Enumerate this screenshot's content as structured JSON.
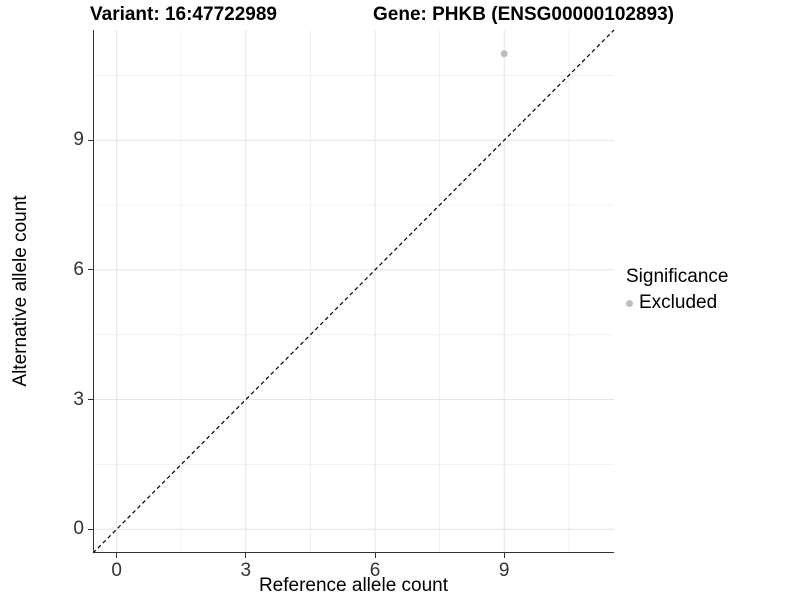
{
  "header": {
    "variant_title": "Variant: 16:47722989",
    "gene_title": "Gene: PHKB (ENSG00000102893)"
  },
  "chart_data": {
    "type": "scatter",
    "xlabel": "Reference allele count",
    "ylabel": "Alternative allele count",
    "x_ticks": [
      0,
      3,
      6,
      9
    ],
    "y_ticks": [
      0,
      3,
      6,
      9
    ],
    "x_minor_ticks": [
      1.5,
      4.5,
      7.5,
      10.5
    ],
    "y_minor_ticks": [
      1.5,
      4.5,
      7.5,
      10.5
    ],
    "xlim": [
      -0.55,
      11.55
    ],
    "ylim": [
      -0.55,
      11.55
    ],
    "grid": true,
    "points": [
      {
        "x": 9,
        "y": 11,
        "series": "Excluded"
      }
    ],
    "identity_line": {
      "equation": "y = x",
      "style": "dashed",
      "color": "#000000"
    },
    "legend": {
      "title": "Significance",
      "position": "right",
      "items": [
        {
          "label": "Excluded",
          "color": "#bebebe"
        }
      ]
    },
    "colors": {
      "point": "#bebebe",
      "grid_major": "#e4e4e4",
      "grid_minor": "#f1f1f1",
      "axis_line": "#333333",
      "tick_text": "#333333",
      "background": "#ffffff"
    }
  }
}
